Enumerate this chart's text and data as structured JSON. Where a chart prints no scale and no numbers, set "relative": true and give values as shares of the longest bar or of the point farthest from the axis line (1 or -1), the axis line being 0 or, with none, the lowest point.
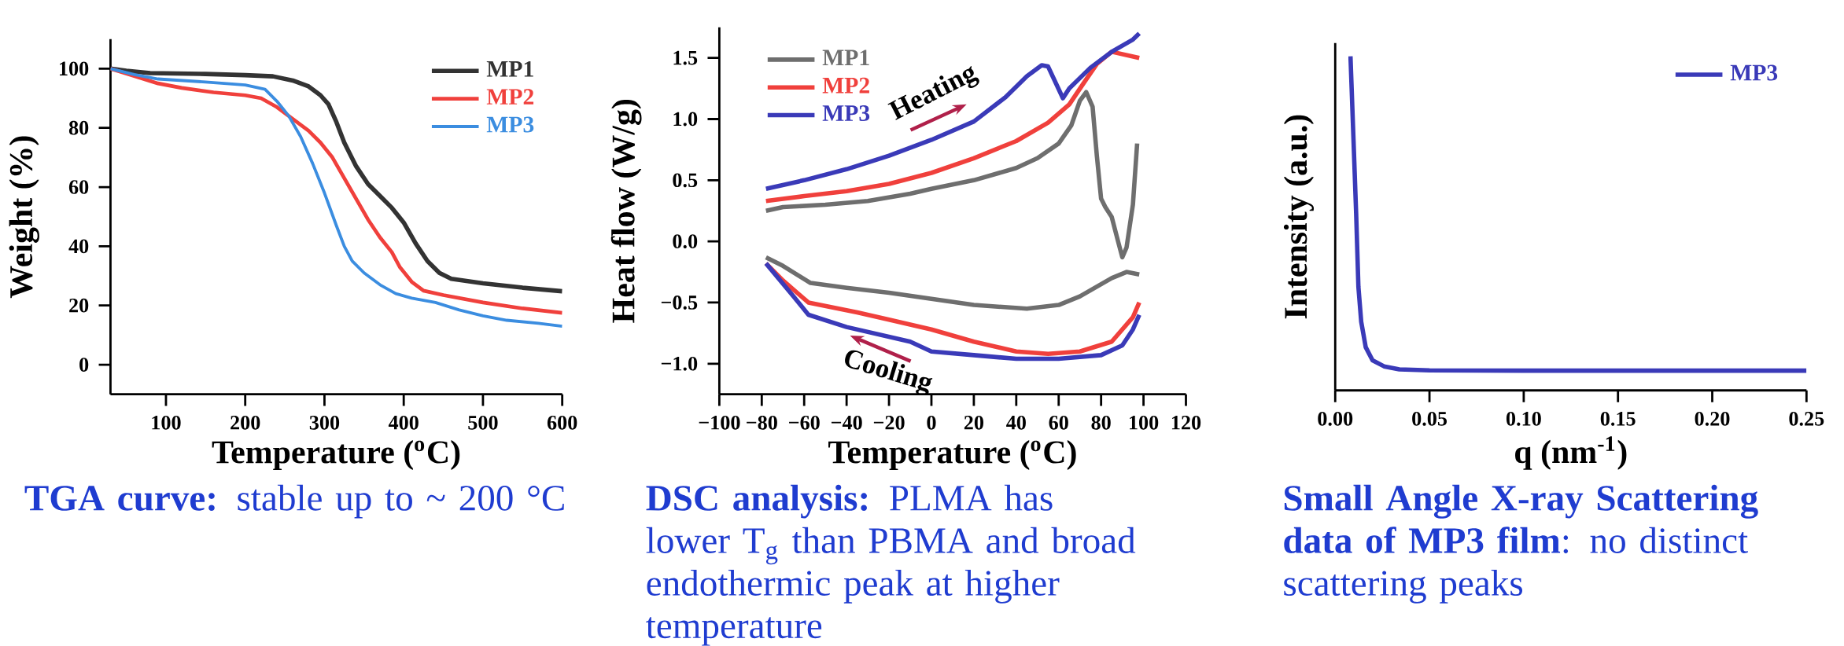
{
  "chart_data": [
    {
      "type": "line",
      "xlabel": "Temperature ($^{o}$C)",
      "ylabel": "Weight (%)",
      "xlim": [
        30,
        600
      ],
      "ylim": [
        -10,
        110
      ],
      "xticks": [
        100,
        200,
        300,
        400,
        500,
        600
      ],
      "yticks": [
        0,
        20,
        40,
        60,
        80,
        100
      ],
      "legend": "top right",
      "marker": "none",
      "line_style": "solid",
      "annotations": [
        "**TGA curve:** stable up to ~ 200 °C"
      ],
      "series": [
        {
          "name": "MP1",
          "color": "#333333",
          "x": [
            30,
            50,
            80,
            150,
            200,
            235,
            260,
            280,
            295,
            305,
            315,
            325,
            340,
            355,
            370,
            385,
            400,
            415,
            430,
            445,
            460,
            500,
            550,
            600
          ],
          "values": [
            100,
            99.3,
            98.5,
            98.2,
            97.8,
            97.4,
            96,
            94,
            91,
            88,
            82,
            75,
            67,
            61,
            57,
            53,
            48,
            41,
            35,
            31,
            29,
            27.5,
            26,
            24.8
          ]
        },
        {
          "name": "MP2",
          "color": "#f0403c",
          "x": [
            30,
            60,
            90,
            120,
            160,
            200,
            220,
            240,
            260,
            280,
            295,
            310,
            325,
            340,
            355,
            370,
            385,
            395,
            410,
            425,
            450,
            500,
            550,
            600
          ],
          "values": [
            100,
            97.5,
            95,
            93.5,
            92,
            91,
            90,
            87,
            83,
            79,
            75,
            70,
            63,
            56,
            49,
            43,
            38,
            33,
            28,
            25,
            23.5,
            21,
            19,
            17.5
          ]
        },
        {
          "name": "MP3",
          "color": "#3b8de0",
          "x": [
            30,
            60,
            90,
            150,
            200,
            225,
            240,
            255,
            270,
            285,
            300,
            315,
            325,
            335,
            350,
            370,
            390,
            410,
            440,
            470,
            500,
            530,
            570,
            600
          ],
          "values": [
            100,
            98,
            96.5,
            95.5,
            94.5,
            93,
            89,
            84,
            77,
            68,
            58,
            47,
            40,
            35,
            31,
            27,
            24,
            22.5,
            21,
            18.5,
            16.5,
            15,
            14,
            13
          ]
        }
      ]
    },
    {
      "type": "line",
      "xlabel": "Temperature ($^{o}$C)",
      "ylabel": "Heat flow (W/g)",
      "xlim": [
        -100,
        120
      ],
      "ylim": [
        -1.25,
        1.75
      ],
      "xticks": [
        {
          "value": -100,
          "label": "−100"
        },
        {
          "value": -80,
          "label": "−80"
        },
        {
          "value": -60,
          "label": "−60"
        },
        {
          "value": -40,
          "label": "−40"
        },
        {
          "value": -20,
          "label": "−20"
        },
        0,
        20,
        40,
        60,
        80,
        100,
        120
      ],
      "yticks": [
        {
          "value": -1,
          "label": "−1.0"
        },
        {
          "value": -0.5,
          "label": "−0.5"
        },
        {
          "value": 0,
          "label": "0.0"
        },
        {
          "value": 0.5,
          "label": "0.5"
        },
        {
          "value": 1,
          "label": "1.0"
        },
        {
          "value": 1.5,
          "label": "1.5"
        }
      ],
      "legend": "top left",
      "marker": "none",
      "line_style": "solid",
      "annotations": [
        "**DSC analysis:** PLMA has lower T$_{g}$ than PBMA and  broad endothermic peak at higher temperature",
        "Heating",
        "Cooling"
      ],
      "series": [
        {
          "name": "MP1",
          "color": "#6e6e6e",
          "x": [
            -78,
            -70,
            -50,
            -30,
            -10,
            0,
            20,
            40,
            50,
            60,
            66,
            70,
            73,
            76,
            78,
            80,
            82,
            85,
            88,
            90,
            92,
            95,
            97
          ],
          "values": [
            0.25,
            0.28,
            0.3,
            0.33,
            0.39,
            0.43,
            0.5,
            0.6,
            0.68,
            0.8,
            0.95,
            1.15,
            1.22,
            1.1,
            0.7,
            0.35,
            0.28,
            0.2,
            0.0,
            -0.13,
            -0.05,
            0.3,
            0.8
          ]
        },
        {
          "color": "#6e6e6e",
          "x": [
            98,
            92,
            85,
            70,
            60,
            45,
            20,
            0,
            -20,
            -40,
            -57,
            -70,
            -78
          ],
          "values": [
            -0.27,
            -0.25,
            -0.3,
            -0.45,
            -0.52,
            -0.55,
            -0.52,
            -0.47,
            -0.42,
            -0.38,
            -0.34,
            -0.2,
            -0.13
          ]
        },
        {
          "name": "MP2",
          "color": "#f0403c",
          "x": [
            -78,
            -60,
            -40,
            -20,
            0,
            20,
            40,
            55,
            65,
            72,
            78,
            85,
            98
          ],
          "values": [
            0.33,
            0.37,
            0.41,
            0.47,
            0.56,
            0.68,
            0.82,
            0.97,
            1.12,
            1.3,
            1.45,
            1.55,
            1.5
          ]
        },
        {
          "color": "#f0403c",
          "x": [
            98,
            95,
            85,
            70,
            55,
            40,
            20,
            0,
            -20,
            -35,
            -58,
            -70,
            -78
          ],
          "values": [
            -0.5,
            -0.62,
            -0.82,
            -0.9,
            -0.92,
            -0.9,
            -0.82,
            -0.72,
            -0.64,
            -0.58,
            -0.5,
            -0.32,
            -0.18
          ]
        },
        {
          "name": "MP3",
          "color": "#3a3ab8",
          "x": [
            -78,
            -60,
            -40,
            -20,
            0,
            20,
            35,
            45,
            52,
            55,
            62,
            65,
            75,
            85,
            95,
            98
          ],
          "values": [
            0.43,
            0.5,
            0.59,
            0.7,
            0.83,
            0.98,
            1.18,
            1.35,
            1.44,
            1.43,
            1.17,
            1.25,
            1.42,
            1.55,
            1.65,
            1.7
          ]
        },
        {
          "color": "#3a3ab8",
          "x": [
            98,
            95,
            90,
            80,
            60,
            40,
            20,
            0,
            -10,
            -20,
            -40,
            -58,
            -65,
            -78
          ],
          "values": [
            -0.6,
            -0.72,
            -0.85,
            -0.93,
            -0.96,
            -0.96,
            -0.93,
            -0.9,
            -0.82,
            -0.78,
            -0.7,
            -0.6,
            -0.45,
            -0.18
          ]
        }
      ]
    },
    {
      "type": "line",
      "xlabel": "q (nm$^{-1}$)",
      "ylabel": "Intensity (a.u.)",
      "xlim": [
        0,
        0.25
      ],
      "relative": true,
      "tick_labels": "x",
      "xticks": [
        {
          "value": 0,
          "label": "0.00"
        },
        0.05,
        {
          "value": 0.1,
          "label": "0.10"
        },
        0.15,
        {
          "value": 0.2,
          "label": "0.20"
        },
        0.25
      ],
      "legend": "top right",
      "marker": "none",
      "line_style": "solid",
      "annotations": [
        "**Small Angle X-ray Scattering data of MP3 film**: no distinct scattering peaks"
      ],
      "series": [
        {
          "name": "MP3",
          "color": "#3a3ab8",
          "x": [
            0.0081,
            0.0097,
            0.0111,
            0.0123,
            0.0138,
            0.0162,
            0.0198,
            0.0259,
            0.034,
            0.05,
            0.1,
            0.155,
            0.25
          ],
          "values": [
            1.0,
            0.75,
            0.53,
            0.31,
            0.205,
            0.129,
            0.09,
            0.072,
            0.063,
            0.06,
            0.059,
            0.059,
            0.059
          ]
        }
      ]
    }
  ]
}
